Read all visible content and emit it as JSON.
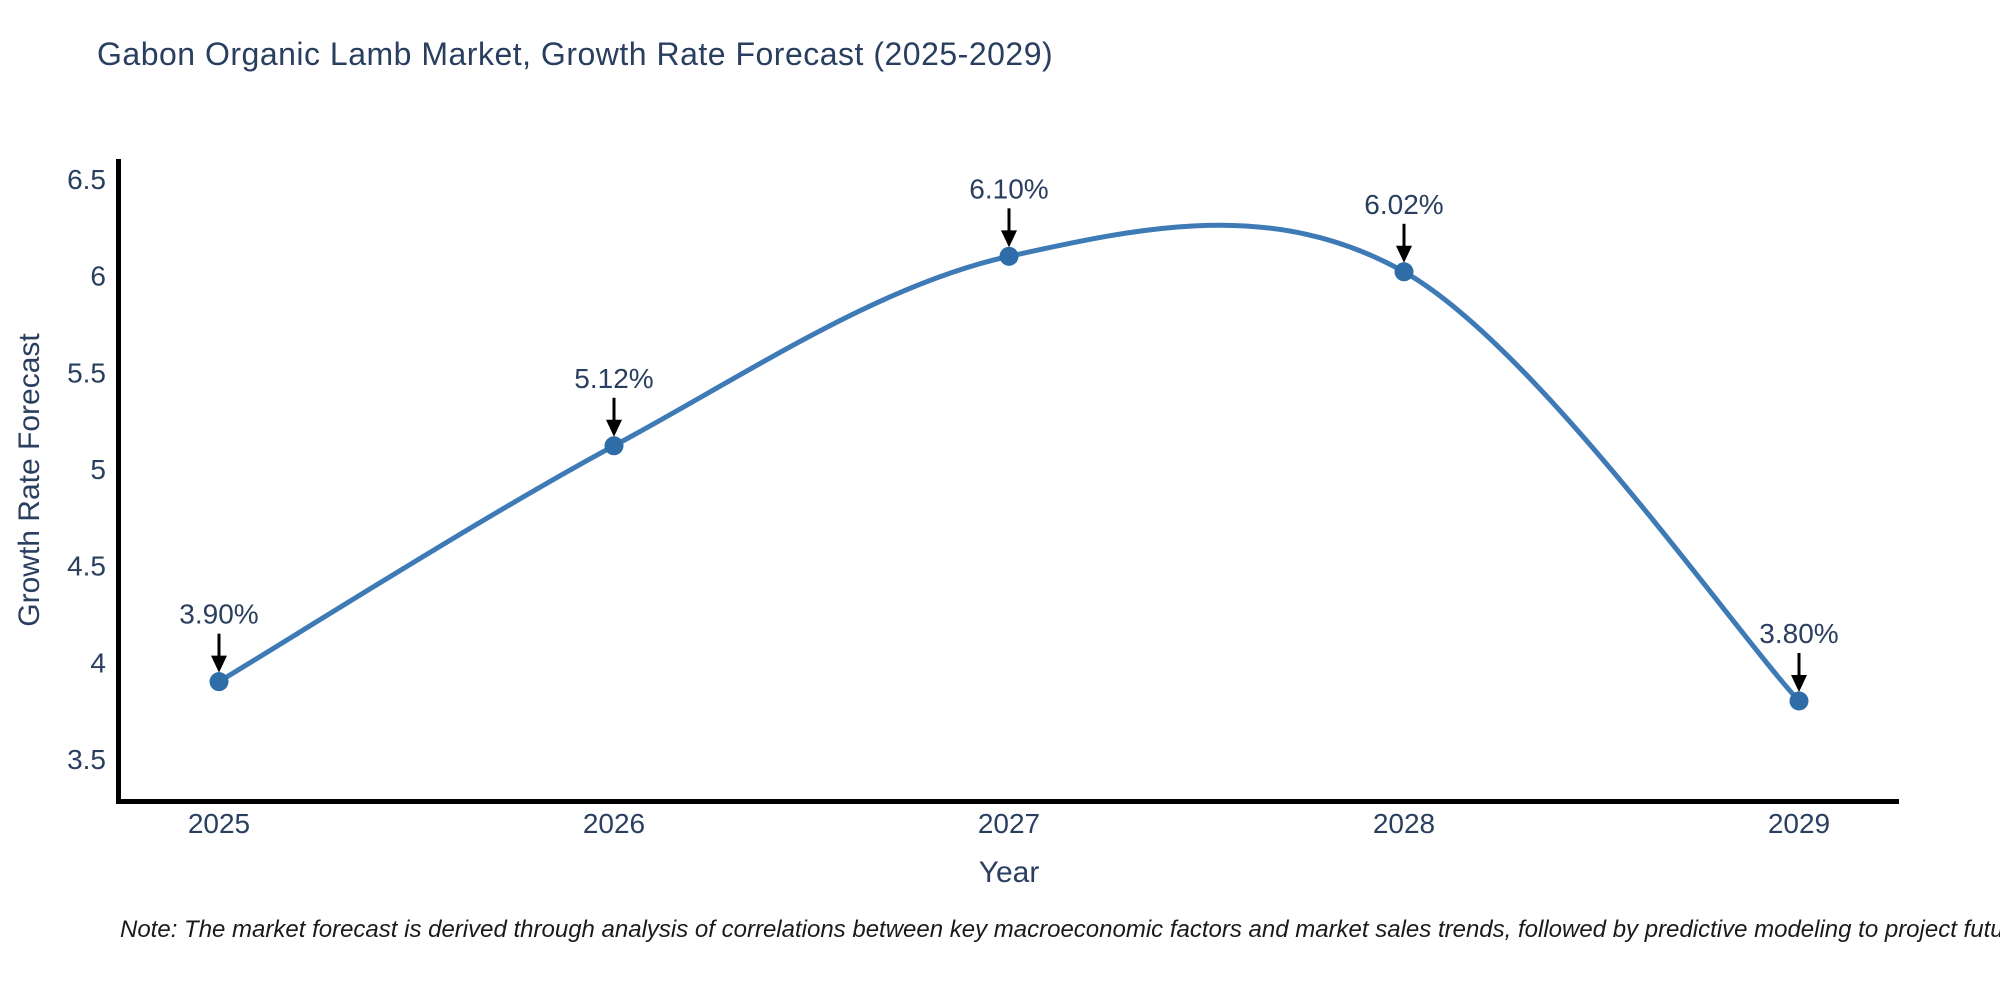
{
  "title": "Gabon Organic Lamb Market, Growth Rate Forecast (2025-2029)",
  "note": "Note: The market forecast is derived through analysis of correlations between key macroeconomic factors and market sales trends, followed by predictive modeling to project future sales",
  "chart_data": {
    "type": "line",
    "title": "Gabon Organic Lamb Market, Growth Rate Forecast (2025-2029)",
    "xlabel": "Year",
    "ylabel": "Growth Rate Forecast",
    "x": [
      2025,
      2026,
      2027,
      2028,
      2029
    ],
    "values": [
      3.9,
      5.12,
      6.1,
      6.02,
      3.8
    ],
    "point_labels": [
      "3.90%",
      "5.12%",
      "6.10%",
      "6.02%",
      "3.80%"
    ],
    "x_tick_labels": [
      "2025",
      "2026",
      "2027",
      "2028",
      "2029"
    ],
    "y_tick_labels": [
      "6.5",
      "6",
      "5.5",
      "5",
      "4.5",
      "4",
      "3.5"
    ],
    "y_tick_values": [
      6.5,
      6.0,
      5.5,
      5.0,
      4.5,
      4.0,
      3.5
    ],
    "ylim": [
      3.28,
      6.6
    ],
    "xlim": [
      2024.74,
      2029.27
    ],
    "grid": false,
    "legend": false,
    "line_shape": "spline",
    "colors": {
      "line": "#3d7ab6",
      "marker": "#2f6da8",
      "axis": "#000000",
      "text": "#2a3f5f",
      "annotation_arrow": "#000000",
      "note_text": "#1a1a1a"
    }
  }
}
